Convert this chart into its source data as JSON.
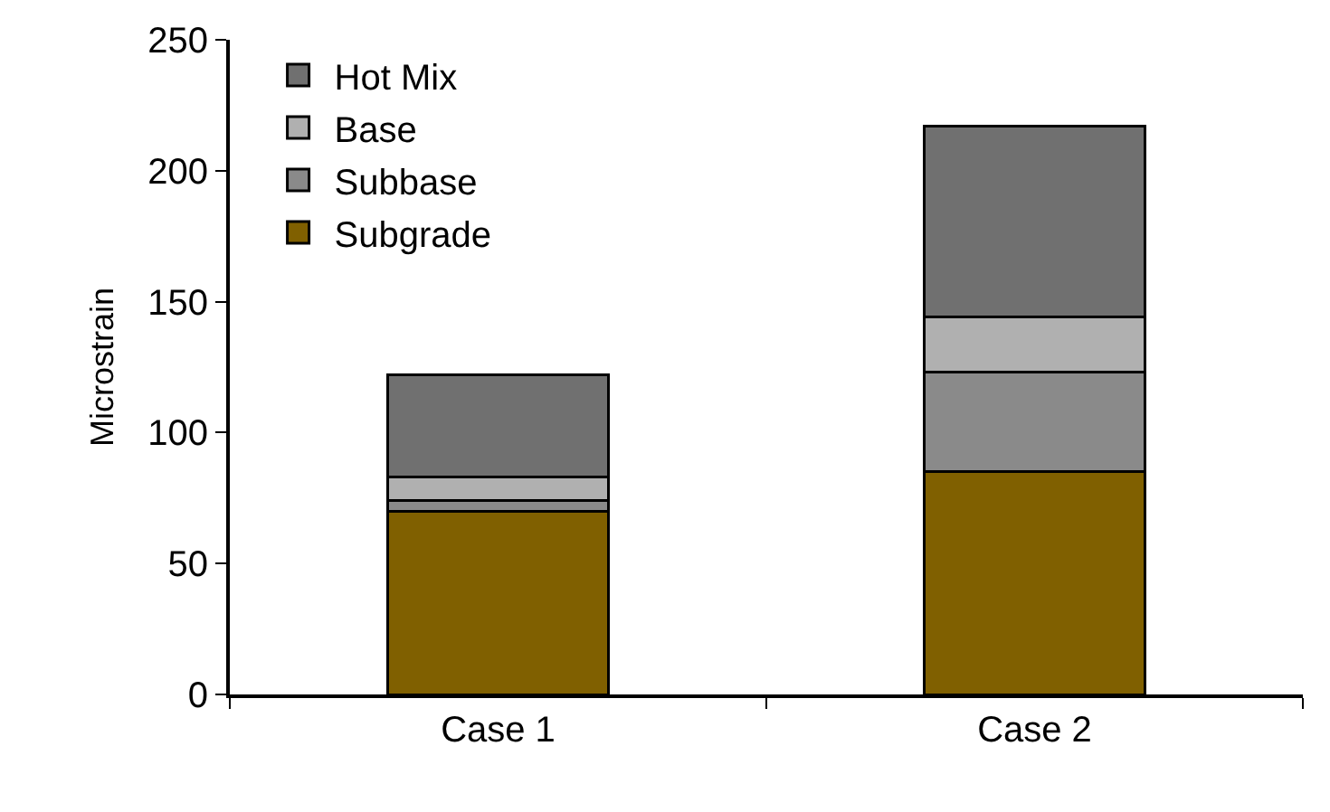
{
  "chart_data": {
    "type": "bar",
    "stacked": true,
    "ylabel": "Microstrain",
    "categories": [
      "Case 1",
      "Case 2"
    ],
    "series": [
      {
        "name": "Subgrade",
        "color": "#806000",
        "values": [
          70,
          85
        ]
      },
      {
        "name": "Subbase",
        "color": "#8a8a8a",
        "values": [
          4,
          38
        ]
      },
      {
        "name": "Base",
        "color": "#b0b0b0",
        "values": [
          9,
          21
        ]
      },
      {
        "name": "Hot Mix",
        "color": "#707070",
        "values": [
          39,
          73
        ]
      }
    ],
    "ylim": [
      0,
      250
    ],
    "yticks": [
      0,
      50,
      100,
      150,
      200,
      250
    ],
    "grid": false,
    "legend": "top left"
  }
}
